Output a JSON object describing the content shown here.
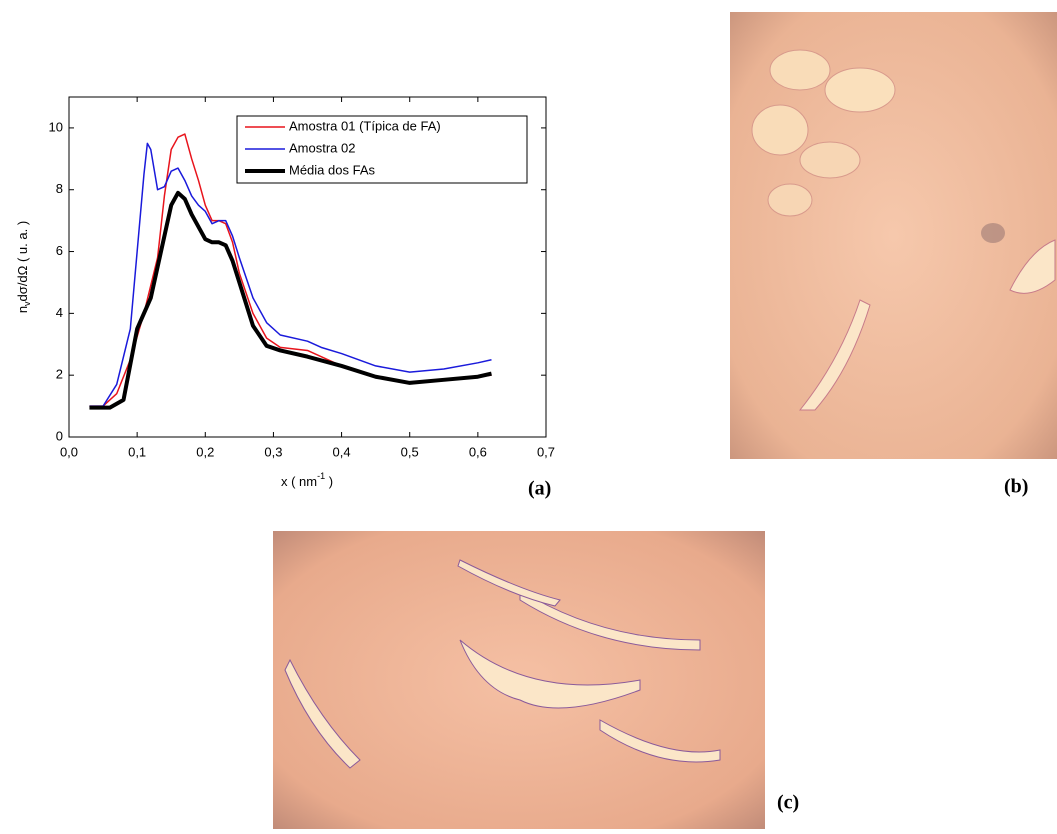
{
  "chart_data": {
    "type": "line",
    "panel_label": "(a)",
    "xlabel": [
      "x ( nm",
      "-1",
      " )"
    ],
    "ylabel": [
      "n",
      "v",
      "dσ/dΩ ( u. a. )"
    ],
    "xlim": [
      0,
      0.7
    ],
    "ylim": [
      0,
      11
    ],
    "xticks": [
      {
        "value": 0,
        "label": "0,0"
      },
      {
        "value": 0.1,
        "label": "0,1"
      },
      {
        "value": 0.2,
        "label": "0,2"
      },
      {
        "value": 0.3,
        "label": "0,3"
      },
      {
        "value": 0.4,
        "label": "0,4"
      },
      {
        "value": 0.5,
        "label": "0,5"
      },
      {
        "value": 0.6,
        "label": "0,6"
      },
      {
        "value": 0.7,
        "label": "0,7"
      }
    ],
    "yticks": [
      0,
      2,
      4,
      6,
      8,
      10
    ],
    "legend": "upper right",
    "series": [
      {
        "name": "Amostra 01 (Típica de FA)",
        "color": "#e8141c",
        "linewidth": 1.5,
        "x": [
          0.03,
          0.05,
          0.07,
          0.09,
          0.11,
          0.13,
          0.14,
          0.15,
          0.16,
          0.17,
          0.18,
          0.19,
          0.2,
          0.21,
          0.22,
          0.23,
          0.24,
          0.25,
          0.27,
          0.29,
          0.31,
          0.35,
          0.4,
          0.45,
          0.5,
          0.55,
          0.6,
          0.62
        ],
        "values": [
          1.0,
          1.0,
          1.4,
          2.5,
          4.0,
          5.8,
          7.8,
          9.3,
          9.7,
          9.8,
          9.0,
          8.3,
          7.5,
          7.0,
          7.0,
          6.9,
          6.3,
          5.3,
          4.0,
          3.2,
          2.9,
          2.8,
          2.3,
          1.95,
          1.75,
          1.85,
          1.95,
          2.0
        ]
      },
      {
        "name": "Amostra 02",
        "color": "#1a1adb",
        "linewidth": 1.5,
        "x": [
          0.03,
          0.05,
          0.07,
          0.09,
          0.1,
          0.11,
          0.115,
          0.12,
          0.13,
          0.14,
          0.15,
          0.16,
          0.17,
          0.18,
          0.19,
          0.2,
          0.21,
          0.22,
          0.23,
          0.24,
          0.25,
          0.27,
          0.29,
          0.31,
          0.35,
          0.37,
          0.4,
          0.45,
          0.5,
          0.55,
          0.6,
          0.62
        ],
        "values": [
          1.0,
          1.0,
          1.7,
          3.5,
          6.0,
          8.5,
          9.5,
          9.3,
          8.0,
          8.1,
          8.6,
          8.7,
          8.3,
          7.8,
          7.5,
          7.3,
          6.9,
          7.0,
          7.0,
          6.5,
          5.8,
          4.5,
          3.7,
          3.3,
          3.1,
          2.9,
          2.7,
          2.3,
          2.1,
          2.2,
          2.4,
          2.5
        ]
      },
      {
        "name": "Média dos FAs",
        "color": "#000000",
        "linewidth": 4,
        "x": [
          0.03,
          0.06,
          0.08,
          0.1,
          0.12,
          0.14,
          0.15,
          0.16,
          0.17,
          0.18,
          0.19,
          0.2,
          0.21,
          0.22,
          0.23,
          0.24,
          0.25,
          0.27,
          0.29,
          0.31,
          0.35,
          0.4,
          0.45,
          0.5,
          0.55,
          0.6,
          0.62
        ],
        "values": [
          0.95,
          0.95,
          1.2,
          3.5,
          4.5,
          6.5,
          7.5,
          7.9,
          7.7,
          7.2,
          6.8,
          6.4,
          6.3,
          6.3,
          6.2,
          5.7,
          5.0,
          3.6,
          2.95,
          2.8,
          2.6,
          2.3,
          1.95,
          1.75,
          1.85,
          1.95,
          2.05
        ]
      }
    ]
  },
  "images": [
    {
      "label": "(b)"
    },
    {
      "label": "(c)"
    }
  ]
}
